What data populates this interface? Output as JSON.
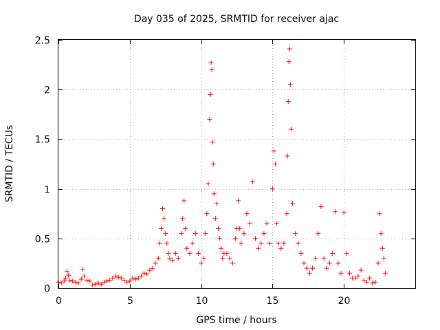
{
  "chart_data": {
    "type": "scatter",
    "title": "Day 035 of 2025, SRMTID for receiver ajac",
    "xlabel": "GPS time / hours",
    "ylabel": "SRMTID / TECUs",
    "xlim": [
      0,
      25
    ],
    "ylim": [
      0,
      2.5
    ],
    "grid": true,
    "marker": "+",
    "x_ticks": [
      0,
      5,
      10,
      15,
      20
    ],
    "x_tick_labels": [
      "0",
      "5",
      "10",
      "15",
      "20"
    ],
    "y_ticks": [
      0,
      0.5,
      1,
      1.5,
      2,
      2.5
    ],
    "y_tick_labels": [
      "0",
      "0.5",
      "1",
      "1.5",
      "2",
      "2.5"
    ],
    "series": [
      {
        "name": "SRMTID",
        "color": "#ff0000",
        "points": [
          [
            0.0,
            0.06
          ],
          [
            0.2,
            0.05
          ],
          [
            0.4,
            0.07
          ],
          [
            0.5,
            0.1
          ],
          [
            0.6,
            0.17
          ],
          [
            0.7,
            0.13
          ],
          [
            0.8,
            0.08
          ],
          [
            1.0,
            0.07
          ],
          [
            1.2,
            0.06
          ],
          [
            1.4,
            0.05
          ],
          [
            1.6,
            0.09
          ],
          [
            1.7,
            0.19
          ],
          [
            1.8,
            0.12
          ],
          [
            2.0,
            0.08
          ],
          [
            2.2,
            0.07
          ],
          [
            2.4,
            0.03
          ],
          [
            2.6,
            0.04
          ],
          [
            2.8,
            0.05
          ],
          [
            3.0,
            0.04
          ],
          [
            3.2,
            0.06
          ],
          [
            3.4,
            0.07
          ],
          [
            3.6,
            0.08
          ],
          [
            3.8,
            0.1
          ],
          [
            4.0,
            0.12
          ],
          [
            4.2,
            0.11
          ],
          [
            4.4,
            0.1
          ],
          [
            4.6,
            0.08
          ],
          [
            4.8,
            0.06
          ],
          [
            5.0,
            0.07
          ],
          [
            5.2,
            0.1
          ],
          [
            5.4,
            0.09
          ],
          [
            5.6,
            0.1
          ],
          [
            5.8,
            0.12
          ],
          [
            6.0,
            0.15
          ],
          [
            6.2,
            0.14
          ],
          [
            6.4,
            0.18
          ],
          [
            6.6,
            0.2
          ],
          [
            6.8,
            0.25
          ],
          [
            7.0,
            0.3
          ],
          [
            7.1,
            0.45
          ],
          [
            7.2,
            0.6
          ],
          [
            7.3,
            0.8
          ],
          [
            7.4,
            0.7
          ],
          [
            7.5,
            0.55
          ],
          [
            7.6,
            0.45
          ],
          [
            7.7,
            0.35
          ],
          [
            7.8,
            0.3
          ],
          [
            8.0,
            0.28
          ],
          [
            8.2,
            0.35
          ],
          [
            8.4,
            0.3
          ],
          [
            8.6,
            0.55
          ],
          [
            8.7,
            0.7
          ],
          [
            8.8,
            0.88
          ],
          [
            8.9,
            0.6
          ],
          [
            9.0,
            0.4
          ],
          [
            9.2,
            0.35
          ],
          [
            9.4,
            0.45
          ],
          [
            9.6,
            0.55
          ],
          [
            9.8,
            0.35
          ],
          [
            10.0,
            0.25
          ],
          [
            10.2,
            0.3
          ],
          [
            10.3,
            0.55
          ],
          [
            10.4,
            0.75
          ],
          [
            10.5,
            1.05
          ],
          [
            10.6,
            1.7
          ],
          [
            10.65,
            1.95
          ],
          [
            10.7,
            2.27
          ],
          [
            10.75,
            2.2
          ],
          [
            10.8,
            1.47
          ],
          [
            10.85,
            1.25
          ],
          [
            10.9,
            0.95
          ],
          [
            11.0,
            0.7
          ],
          [
            11.1,
            0.85
          ],
          [
            11.2,
            0.6
          ],
          [
            11.3,
            0.5
          ],
          [
            11.4,
            0.4
          ],
          [
            11.5,
            0.3
          ],
          [
            11.6,
            0.35
          ],
          [
            11.8,
            0.35
          ],
          [
            12.0,
            0.3
          ],
          [
            12.2,
            0.25
          ],
          [
            12.4,
            0.5
          ],
          [
            12.5,
            0.6
          ],
          [
            12.6,
            0.88
          ],
          [
            12.7,
            0.6
          ],
          [
            12.8,
            0.45
          ],
          [
            13.0,
            0.55
          ],
          [
            13.2,
            0.75
          ],
          [
            13.4,
            0.65
          ],
          [
            13.6,
            1.07
          ],
          [
            13.8,
            0.5
          ],
          [
            14.0,
            0.4
          ],
          [
            14.2,
            0.45
          ],
          [
            14.4,
            0.55
          ],
          [
            14.6,
            0.65
          ],
          [
            14.8,
            0.45
          ],
          [
            15.0,
            1.0
          ],
          [
            15.1,
            1.38
          ],
          [
            15.2,
            1.25
          ],
          [
            15.3,
            0.65
          ],
          [
            15.4,
            0.45
          ],
          [
            15.6,
            0.4
          ],
          [
            15.8,
            0.45
          ],
          [
            16.0,
            0.75
          ],
          [
            16.05,
            1.33
          ],
          [
            16.1,
            1.88
          ],
          [
            16.15,
            2.28
          ],
          [
            16.2,
            2.41
          ],
          [
            16.25,
            2.05
          ],
          [
            16.3,
            1.6
          ],
          [
            16.4,
            0.85
          ],
          [
            16.6,
            0.55
          ],
          [
            16.8,
            0.45
          ],
          [
            17.0,
            0.35
          ],
          [
            17.2,
            0.25
          ],
          [
            17.4,
            0.2
          ],
          [
            17.6,
            0.15
          ],
          [
            17.8,
            0.2
          ],
          [
            18.0,
            0.3
          ],
          [
            18.2,
            0.55
          ],
          [
            18.4,
            0.82
          ],
          [
            18.6,
            0.3
          ],
          [
            18.8,
            0.2
          ],
          [
            19.0,
            0.25
          ],
          [
            19.2,
            0.35
          ],
          [
            19.4,
            0.77
          ],
          [
            19.6,
            0.25
          ],
          [
            19.8,
            0.15
          ],
          [
            20.0,
            0.76
          ],
          [
            20.2,
            0.35
          ],
          [
            20.4,
            0.15
          ],
          [
            20.6,
            0.1
          ],
          [
            20.8,
            0.1
          ],
          [
            21.0,
            0.12
          ],
          [
            21.2,
            0.18
          ],
          [
            21.4,
            0.08
          ],
          [
            21.6,
            0.06
          ],
          [
            21.8,
            0.1
          ],
          [
            22.0,
            0.05
          ],
          [
            22.2,
            0.06
          ],
          [
            22.4,
            0.25
          ],
          [
            22.5,
            0.75
          ],
          [
            22.6,
            0.55
          ],
          [
            22.7,
            0.4
          ],
          [
            22.8,
            0.3
          ],
          [
            22.9,
            0.15
          ]
        ]
      }
    ]
  }
}
